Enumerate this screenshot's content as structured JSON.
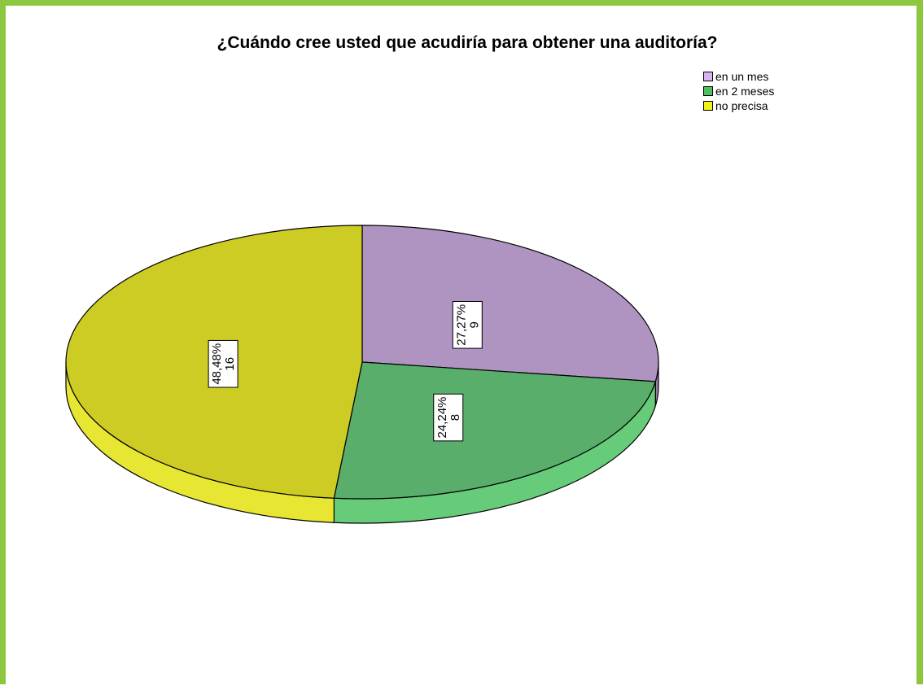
{
  "colors": {
    "frame": "#8dc63f",
    "legend": [
      "#d9b3f2",
      "#4fbf5f",
      "#f2f21a"
    ],
    "top": [
      "#af94c2",
      "#58ae6a",
      "#cccc25"
    ],
    "side": [
      "#9a82ad",
      "#66cc7a",
      "#e6e633"
    ]
  },
  "chart_data": {
    "type": "pie",
    "title": "¿Cuándo cree usted que acudiría para obtener una auditoría?",
    "legend_position": "top-right",
    "slices": [
      {
        "label": "en un mes",
        "count": 9,
        "percent_label": "27,27%",
        "count_label": "9"
      },
      {
        "label": "en 2 meses",
        "count": 8,
        "percent_label": "24,24%",
        "count_label": "8"
      },
      {
        "label": "no precisa",
        "count": 16,
        "percent_label": "48,48%",
        "count_label": "16"
      }
    ]
  }
}
